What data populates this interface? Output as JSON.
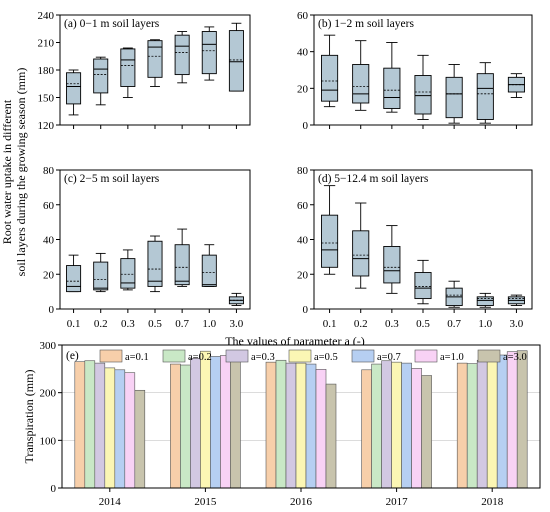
{
  "figure": {
    "ylabel_line1": "Root water uptake in different",
    "ylabel_line2": "soil layers during the growing season (mm)",
    "xlabel": "The values of parameter a (-)"
  },
  "chart_data": [
    {
      "type": "box",
      "title": "(a) 0−1 m soil layers",
      "categories": [
        "0.1",
        "0.2",
        "0.3",
        "0.5",
        "0.7",
        "1.0",
        "3.0"
      ],
      "ylim": [
        120,
        240
      ],
      "yticks": [
        "120",
        "150",
        "180",
        "210",
        "240"
      ],
      "boxes": [
        {
          "min": 131,
          "q1": 143,
          "median": 162,
          "mean": 165,
          "q3": 177,
          "max": 180
        },
        {
          "min": 142,
          "q1": 155,
          "median": 181,
          "mean": 175,
          "q3": 192,
          "max": 194
        },
        {
          "min": 150,
          "q1": 162,
          "median": 191,
          "mean": 185,
          "q3": 203,
          "max": 204
        },
        {
          "min": 162,
          "q1": 172,
          "median": 205,
          "mean": 195,
          "q3": 212,
          "max": 213
        },
        {
          "min": 166,
          "q1": 175,
          "median": 206,
          "mean": 199,
          "q3": 218,
          "max": 222
        },
        {
          "min": 169,
          "q1": 176,
          "median": 208,
          "mean": 201,
          "q3": 222,
          "max": 227
        },
        {
          "min": 157,
          "q1": 157,
          "median": 189,
          "mean": 191,
          "q3": 223,
          "max": 231
        }
      ]
    },
    {
      "type": "box",
      "title": "(b) 1−2 m soil layers",
      "categories": [
        "0.1",
        "0.2",
        "0.3",
        "0.5",
        "0.7",
        "1.0",
        "3.0"
      ],
      "ylim": [
        0,
        60
      ],
      "yticks": [
        "0",
        "20",
        "40",
        "60"
      ],
      "boxes": [
        {
          "min": 10,
          "q1": 13,
          "median": 19,
          "mean": 24,
          "q3": 38,
          "max": 49
        },
        {
          "min": 8,
          "q1": 12,
          "median": 17,
          "mean": 21,
          "q3": 33,
          "max": 46
        },
        {
          "min": 7,
          "q1": 9,
          "median": 15,
          "mean": 19,
          "q3": 31,
          "max": 45
        },
        {
          "min": 3,
          "q1": 6,
          "median": 16,
          "mean": 18,
          "q3": 27,
          "max": 38
        },
        {
          "min": 1,
          "q1": 4,
          "median": 17,
          "mean": 17,
          "q3": 26,
          "max": 33
        },
        {
          "min": 1,
          "q1": 3,
          "median": 20,
          "mean": 17,
          "q3": 28,
          "max": 34
        },
        {
          "min": 15,
          "q1": 18,
          "median": 22,
          "mean": 22,
          "q3": 26,
          "max": 28
        }
      ]
    },
    {
      "type": "box",
      "title": "(c) 2−5 m soil layers",
      "categories": [
        "0.1",
        "0.2",
        "0.3",
        "0.5",
        "0.7",
        "1.0",
        "3.0"
      ],
      "ylim": [
        0,
        80
      ],
      "yticks": [
        "0",
        "20",
        "40",
        "60",
        "80"
      ],
      "boxes": [
        {
          "min": 10,
          "q1": 10,
          "median": 13,
          "mean": 16,
          "q3": 25,
          "max": 31
        },
        {
          "min": 10,
          "q1": 11,
          "median": 12,
          "mean": 17,
          "q3": 27,
          "max": 32
        },
        {
          "min": 11,
          "q1": 12,
          "median": 15,
          "mean": 20,
          "q3": 29,
          "max": 34
        },
        {
          "min": 10,
          "q1": 13,
          "median": 16,
          "mean": 23,
          "q3": 39,
          "max": 42
        },
        {
          "min": 13,
          "q1": 14,
          "median": 16,
          "mean": 24,
          "q3": 37,
          "max": 46
        },
        {
          "min": 13,
          "q1": 13,
          "median": 14,
          "mean": 21,
          "q3": 31,
          "max": 37
        },
        {
          "min": 2,
          "q1": 3,
          "median": 5,
          "mean": 5,
          "q3": 7,
          "max": 9
        }
      ]
    },
    {
      "type": "box",
      "title": "(d) 5−12.4 m soil layers",
      "categories": [
        "0.1",
        "0.2",
        "0.3",
        "0.5",
        "0.7",
        "1.0",
        "3.0"
      ],
      "ylim": [
        0,
        80
      ],
      "yticks": [
        "0",
        "20",
        "40",
        "60",
        "80"
      ],
      "boxes": [
        {
          "min": 20,
          "q1": 24,
          "median": 34,
          "mean": 38,
          "q3": 54,
          "max": 71
        },
        {
          "min": 12,
          "q1": 19,
          "median": 29,
          "mean": 31,
          "q3": 45,
          "max": 61
        },
        {
          "min": 9,
          "q1": 15,
          "median": 22,
          "mean": 24,
          "q3": 36,
          "max": 48
        },
        {
          "min": 3,
          "q1": 6,
          "median": 12,
          "mean": 13,
          "q3": 21,
          "max": 28
        },
        {
          "min": 1,
          "q1": 2,
          "median": 7,
          "mean": 8,
          "q3": 12,
          "max": 16
        },
        {
          "min": 1,
          "q1": 2,
          "median": 5,
          "mean": 6,
          "q3": 7,
          "max": 9
        },
        {
          "min": 2,
          "q1": 3,
          "median": 5,
          "mean": 6,
          "q3": 7,
          "max": 8
        }
      ]
    },
    {
      "type": "bar",
      "title": "(e)",
      "ylabel": "Transpiration (mm)",
      "ylim": [
        0,
        300
      ],
      "yticks": [
        "0",
        "100",
        "200",
        "300"
      ],
      "grid": true,
      "categories": [
        "2014",
        "2015",
        "2016",
        "2017",
        "2018"
      ],
      "legend_position": "top",
      "series": [
        {
          "name": "a=0.1",
          "color": "#f7cfaa",
          "values": [
            265,
            260,
            264,
            248,
            262
          ]
        },
        {
          "name": "a=0.2",
          "color": "#c9e8c6",
          "values": [
            267,
            258,
            268,
            260,
            261
          ]
        },
        {
          "name": "a=0.3",
          "color": "#d2c8e2",
          "values": [
            262,
            272,
            262,
            267,
            268
          ]
        },
        {
          "name": "a=0.5",
          "color": "#fbf6b4",
          "values": [
            252,
            287,
            262,
            264,
            274
          ]
        },
        {
          "name": "a=0.7",
          "color": "#b6cff2",
          "values": [
            248,
            276,
            260,
            262,
            279
          ]
        },
        {
          "name": "a=1.0",
          "color": "#f8d2f5",
          "values": [
            242,
            278,
            249,
            251,
            286
          ]
        },
        {
          "name": "a=3.0",
          "color": "#c8c4ad",
          "values": [
            205,
            272,
            218,
            236,
            288
          ]
        }
      ]
    }
  ]
}
